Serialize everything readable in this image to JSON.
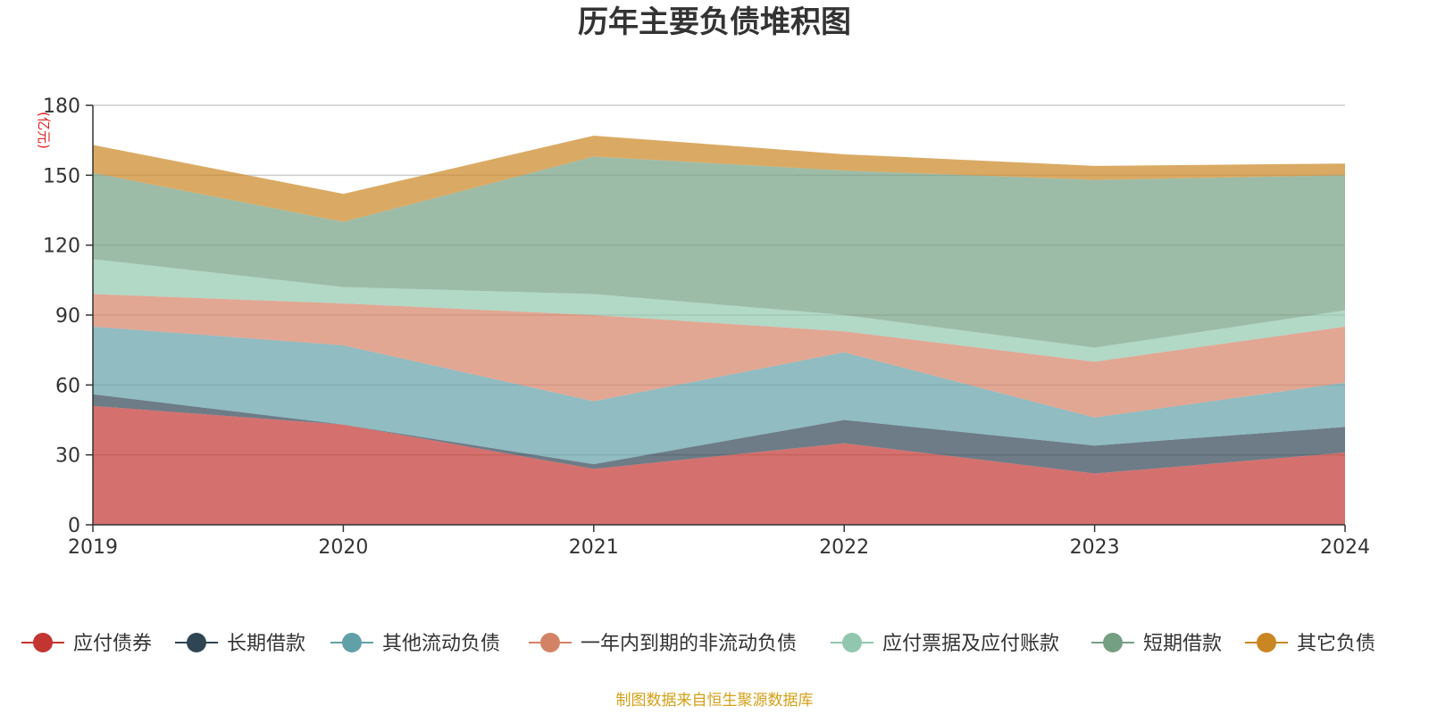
{
  "chart_data": {
    "type": "area",
    "stacked": true,
    "title": "历年主要负债堆积图",
    "unit_label": "(亿元)",
    "source": "制图数据来自恒生聚源数据库",
    "x": [
      "2019",
      "2020",
      "2021",
      "2022",
      "2023",
      "2024"
    ],
    "ylim": [
      0,
      180
    ],
    "yticks": [
      0,
      30,
      60,
      90,
      120,
      150,
      180
    ],
    "grid": true,
    "legend_position": "bottom",
    "series": [
      {
        "name": "应付债券",
        "color": "#c23531",
        "values": [
          51,
          43,
          24,
          35,
          22,
          31
        ]
      },
      {
        "name": "长期借款",
        "color": "#2f4554",
        "values": [
          5,
          0,
          2,
          10,
          12,
          11
        ]
      },
      {
        "name": "其他流动负债",
        "color": "#61a0a8",
        "values": [
          29,
          34,
          27,
          29,
          12,
          19
        ]
      },
      {
        "name": "一年内到期的非流动负债",
        "color": "#d48265",
        "values": [
          14,
          18,
          37,
          9,
          24,
          24
        ]
      },
      {
        "name": "应付票据及应付账款",
        "color": "#91c7ae",
        "values": [
          15,
          7,
          9,
          7,
          6,
          7
        ]
      },
      {
        "name": "短期借款",
        "color": "#749f83",
        "values": [
          37,
          28,
          59,
          62,
          72,
          58
        ]
      },
      {
        "name": "其它负债",
        "color": "#ca8622",
        "values": [
          12,
          12,
          9,
          7,
          6,
          5
        ]
      }
    ]
  }
}
